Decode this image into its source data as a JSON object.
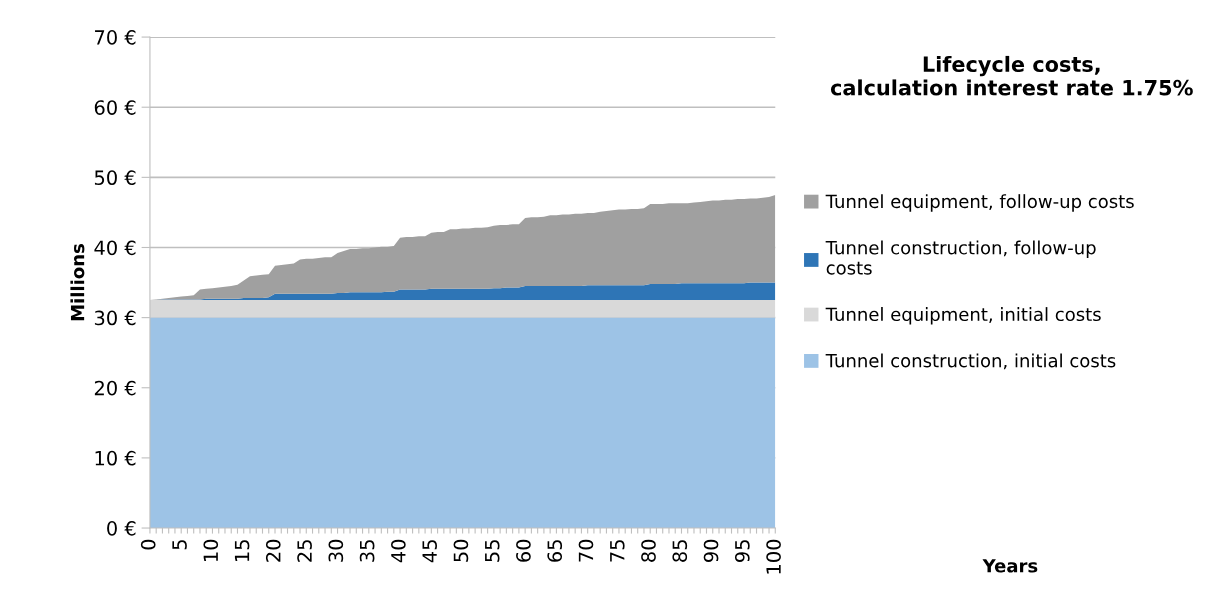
{
  "chart_data": {
    "type": "area",
    "stacked": true,
    "title": "Lifecycle costs,\ncalculation interest rate 1.75%",
    "annotations": [
      "Years"
    ],
    "ylabel": "Millions",
    "categories": [
      "0",
      null,
      null,
      null,
      null,
      "5",
      null,
      null,
      null,
      null,
      "10",
      null,
      null,
      null,
      null,
      "15",
      null,
      null,
      null,
      null,
      "20",
      null,
      null,
      null,
      null,
      "25",
      null,
      null,
      null,
      null,
      "30",
      null,
      null,
      null,
      null,
      "35",
      null,
      null,
      null,
      null,
      "40",
      null,
      null,
      null,
      null,
      "45",
      null,
      null,
      null,
      null,
      "50",
      null,
      null,
      null,
      null,
      "55",
      null,
      null,
      null,
      null,
      "60",
      null,
      null,
      null,
      null,
      "65",
      null,
      null,
      null,
      null,
      "70",
      null,
      null,
      null,
      null,
      "75",
      null,
      null,
      null,
      null,
      "80",
      null,
      null,
      null,
      null,
      "85",
      null,
      null,
      null,
      null,
      "90",
      null,
      null,
      null,
      null,
      "95",
      null,
      null,
      null,
      null,
      "100"
    ],
    "series": [
      {
        "name": "Tunnel construction, initial costs",
        "color": "#9dc3e6",
        "values": [
          30,
          30,
          30,
          30,
          30,
          30,
          30,
          30,
          30,
          30,
          30,
          30,
          30,
          30,
          30,
          30,
          30,
          30,
          30,
          30,
          30,
          30,
          30,
          30,
          30,
          30,
          30,
          30,
          30,
          30,
          30,
          30,
          30,
          30,
          30,
          30,
          30,
          30,
          30,
          30,
          30,
          30,
          30,
          30,
          30,
          30,
          30,
          30,
          30,
          30,
          30,
          30,
          30,
          30,
          30,
          30,
          30,
          30,
          30,
          30,
          30,
          30,
          30,
          30,
          30,
          30,
          30,
          30,
          30,
          30,
          30,
          30,
          30,
          30,
          30,
          30,
          30,
          30,
          30,
          30,
          30,
          30,
          30,
          30,
          30,
          30,
          30,
          30,
          30,
          30,
          30,
          30,
          30,
          30,
          30,
          30,
          30,
          30,
          30,
          30,
          30
        ]
      },
      {
        "name": "Tunnel equipment, initial costs",
        "color": "#d9d9d9",
        "values": [
          2.5,
          2.5,
          2.5,
          2.5,
          2.5,
          2.5,
          2.5,
          2.5,
          2.5,
          2.5,
          2.5,
          2.5,
          2.5,
          2.5,
          2.5,
          2.5,
          2.5,
          2.5,
          2.5,
          2.5,
          2.5,
          2.5,
          2.5,
          2.5,
          2.5,
          2.5,
          2.5,
          2.5,
          2.5,
          2.5,
          2.5,
          2.5,
          2.5,
          2.5,
          2.5,
          2.5,
          2.5,
          2.5,
          2.5,
          2.5,
          2.5,
          2.5,
          2.5,
          2.5,
          2.5,
          2.5,
          2.5,
          2.5,
          2.5,
          2.5,
          2.5,
          2.5,
          2.5,
          2.5,
          2.5,
          2.5,
          2.5,
          2.5,
          2.5,
          2.5,
          2.5,
          2.5,
          2.5,
          2.5,
          2.5,
          2.5,
          2.5,
          2.5,
          2.5,
          2.5,
          2.5,
          2.5,
          2.5,
          2.5,
          2.5,
          2.5,
          2.5,
          2.5,
          2.5,
          2.5,
          2.5,
          2.5,
          2.5,
          2.5,
          2.5,
          2.5,
          2.5,
          2.5,
          2.5,
          2.5,
          2.5,
          2.5,
          2.5,
          2.5,
          2.5,
          2.5,
          2.5,
          2.5,
          2.5,
          2.5,
          2.5
        ]
      },
      {
        "name": "Tunnel construction, follow-up costs",
        "color": "#2e75b6",
        "values": [
          0,
          0.0,
          0.1,
          0.1,
          0.1,
          0.1,
          0.1,
          0.1,
          0.1,
          0.2,
          0.2,
          0.2,
          0.2,
          0.2,
          0.2,
          0.3,
          0.3,
          0.3,
          0.3,
          0.4,
          0.9,
          0.9,
          0.9,
          0.9,
          0.9,
          0.9,
          0.9,
          0.9,
          0.9,
          0.9,
          1.0,
          1.0,
          1.1,
          1.1,
          1.1,
          1.1,
          1.1,
          1.1,
          1.2,
          1.2,
          1.5,
          1.5,
          1.5,
          1.5,
          1.5,
          1.6,
          1.6,
          1.6,
          1.6,
          1.6,
          1.6,
          1.6,
          1.6,
          1.6,
          1.6,
          1.7,
          1.7,
          1.8,
          1.8,
          1.8,
          2.0,
          2.0,
          2.0,
          2.0,
          2.0,
          2.0,
          2.0,
          2.0,
          2.0,
          2.0,
          2.1,
          2.1,
          2.1,
          2.1,
          2.1,
          2.1,
          2.1,
          2.1,
          2.1,
          2.1,
          2.3,
          2.3,
          2.3,
          2.3,
          2.3,
          2.4,
          2.4,
          2.4,
          2.4,
          2.4,
          2.4,
          2.4,
          2.4,
          2.4,
          2.4,
          2.4,
          2.5,
          2.5,
          2.5,
          2.5,
          2.5
        ]
      },
      {
        "name": "Tunnel equipment, follow-up costs",
        "color": "#a0a0a0",
        "values": [
          0,
          0.1,
          0.1,
          0.2,
          0.3,
          0.4,
          0.5,
          0.6,
          1.4,
          1.4,
          1.5,
          1.6,
          1.7,
          1.8,
          2.0,
          2.5,
          3.1,
          3.2,
          3.3,
          3.3,
          4.0,
          4.1,
          4.2,
          4.3,
          4.9,
          5.0,
          5.0,
          5.1,
          5.2,
          5.2,
          5.7,
          6.0,
          6.2,
          6.2,
          6.3,
          6.3,
          6.4,
          6.5,
          6.4,
          6.5,
          7.4,
          7.5,
          7.5,
          7.6,
          7.6,
          8.0,
          8.1,
          8.1,
          8.5,
          8.5,
          8.6,
          8.6,
          8.7,
          8.7,
          8.8,
          8.9,
          9.0,
          8.9,
          9.0,
          9.0,
          9.7,
          9.8,
          9.8,
          9.9,
          10.1,
          10.1,
          10.2,
          10.2,
          10.3,
          10.3,
          10.3,
          10.3,
          10.5,
          10.6,
          10.7,
          10.8,
          10.8,
          10.9,
          10.9,
          11.0,
          11.4,
          11.4,
          11.4,
          11.5,
          11.5,
          11.4,
          11.4,
          11.5,
          11.6,
          11.7,
          11.8,
          11.8,
          11.9,
          11.9,
          12.0,
          12.0,
          12.0,
          12.0,
          12.1,
          12.2,
          12.5
        ]
      }
    ],
    "ylim": [
      0,
      70
    ],
    "yticks": [
      {
        "value": 0,
        "label": "0 €"
      },
      {
        "value": 10,
        "label": "10 €"
      },
      {
        "value": 20,
        "label": "20 €"
      },
      {
        "value": 30,
        "label": "30 €"
      },
      {
        "value": 40,
        "label": "40 €"
      },
      {
        "value": 50,
        "label": "50 €"
      },
      {
        "value": 60,
        "label": "60 €"
      },
      {
        "value": 70,
        "label": "70 €"
      }
    ],
    "grid": "y",
    "legend": "right"
  }
}
